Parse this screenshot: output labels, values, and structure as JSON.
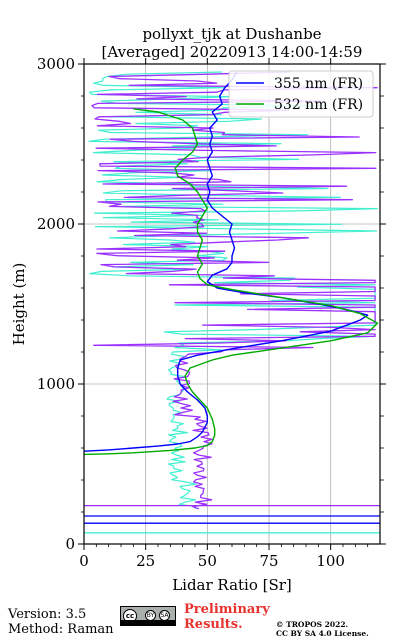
{
  "chart_data": {
    "type": "line",
    "title": "pollyxt_tjk at Dushanbe",
    "subtitle": "[Averaged] 20220913 14:00-14:59",
    "xlabel": "Lidar Ratio [Sr]",
    "ylabel": "Height (m)",
    "xlim": [
      0,
      120
    ],
    "ylim": [
      0,
      3000
    ],
    "xticks": [
      "0",
      "25",
      "50",
      "75",
      "100"
    ],
    "yticks": [
      "0",
      "1000",
      "2000",
      "3000"
    ],
    "grid": true,
    "legend_position": "top-right",
    "series": [
      {
        "name": "355 nm (FR)",
        "color": "#0000ff",
        "points": [
          [
            0,
            580
          ],
          [
            10,
            588
          ],
          [
            20,
            600
          ],
          [
            30,
            612
          ],
          [
            38,
            625
          ],
          [
            43,
            640
          ],
          [
            46,
            670
          ],
          [
            48,
            700
          ],
          [
            49,
            730
          ],
          [
            50,
            760
          ],
          [
            50,
            800
          ],
          [
            49,
            850
          ],
          [
            46,
            900
          ],
          [
            42,
            950
          ],
          [
            39,
            1000
          ],
          [
            38,
            1050
          ],
          [
            38,
            1100
          ],
          [
            39,
            1150
          ],
          [
            46,
            1180
          ],
          [
            60,
            1220
          ],
          [
            80,
            1270
          ],
          [
            100,
            1330
          ],
          [
            112,
            1400
          ],
          [
            115,
            1430
          ],
          [
            108,
            1460
          ],
          [
            95,
            1500
          ],
          [
            80,
            1540
          ],
          [
            65,
            1570
          ],
          [
            54,
            1600
          ],
          [
            50,
            1640
          ],
          [
            52,
            1680
          ],
          [
            58,
            1720
          ],
          [
            60,
            1760
          ],
          [
            60,
            1800
          ],
          [
            61,
            1850
          ],
          [
            60,
            1900
          ],
          [
            59,
            1950
          ],
          [
            60,
            2000
          ],
          [
            56,
            2050
          ],
          [
            52,
            2100
          ],
          [
            50,
            2150
          ],
          [
            51,
            2200
          ],
          [
            50,
            2250
          ],
          [
            52,
            2300
          ],
          [
            51,
            2350
          ],
          [
            50,
            2400
          ],
          [
            52,
            2450
          ],
          [
            51,
            2500
          ],
          [
            52,
            2550
          ],
          [
            51,
            2600
          ],
          [
            54,
            2650
          ],
          [
            52,
            2700
          ],
          [
            56,
            2750
          ],
          [
            55,
            2800
          ],
          [
            57,
            2850
          ],
          [
            60,
            2900
          ],
          [
            62,
            2950
          ]
        ]
      },
      {
        "name": "532 nm (FR)",
        "color": "#00aa00",
        "points": [
          [
            0,
            560
          ],
          [
            10,
            564
          ],
          [
            20,
            570
          ],
          [
            35,
            585
          ],
          [
            45,
            600
          ],
          [
            50,
            615
          ],
          [
            52,
            640
          ],
          [
            53,
            680
          ],
          [
            53,
            720
          ],
          [
            52,
            780
          ],
          [
            50,
            850
          ],
          [
            47,
            900
          ],
          [
            44,
            950
          ],
          [
            42,
            1000
          ],
          [
            41,
            1050
          ],
          [
            43,
            1100
          ],
          [
            52,
            1150
          ],
          [
            60,
            1180
          ],
          [
            78,
            1220
          ],
          [
            100,
            1270
          ],
          [
            115,
            1320
          ],
          [
            119,
            1380
          ],
          [
            112,
            1440
          ],
          [
            100,
            1490
          ],
          [
            88,
            1520
          ],
          [
            72,
            1560
          ],
          [
            60,
            1590
          ],
          [
            50,
            1620
          ],
          [
            47,
            1660
          ],
          [
            46,
            1700
          ],
          [
            48,
            1750
          ],
          [
            46,
            1800
          ],
          [
            47,
            1850
          ],
          [
            48,
            1900
          ],
          [
            46,
            1950
          ],
          [
            46,
            2000
          ],
          [
            48,
            2050
          ],
          [
            50,
            2100
          ],
          [
            48,
            2150
          ],
          [
            46,
            2200
          ],
          [
            43,
            2250
          ],
          [
            38,
            2300
          ],
          [
            37,
            2350
          ],
          [
            40,
            2400
          ],
          [
            44,
            2450
          ],
          [
            46,
            2500
          ],
          [
            45,
            2550
          ],
          [
            44,
            2600
          ],
          [
            40,
            2650
          ],
          [
            30,
            2700
          ],
          [
            20,
            2720
          ]
        ]
      }
    ],
    "noisy_series_colors": [
      "#9b30ff",
      "#3fefcf"
    ]
  },
  "legend": {
    "items": [
      {
        "label": "355 nm (FR)",
        "color": "#0000ff"
      },
      {
        "label": "532 nm (FR)",
        "color": "#00aa00"
      }
    ]
  },
  "footer": {
    "version": "Version: 3.5",
    "method": "Method: Raman",
    "preliminary_1": "Preliminary",
    "preliminary_2": "Results.",
    "copyright_1": "© TROPOS 2022.",
    "copyright_2": "CC BY SA 4.0 License."
  },
  "license_badge": {
    "cc": "cc",
    "by": "BY",
    "sa": "SA"
  }
}
